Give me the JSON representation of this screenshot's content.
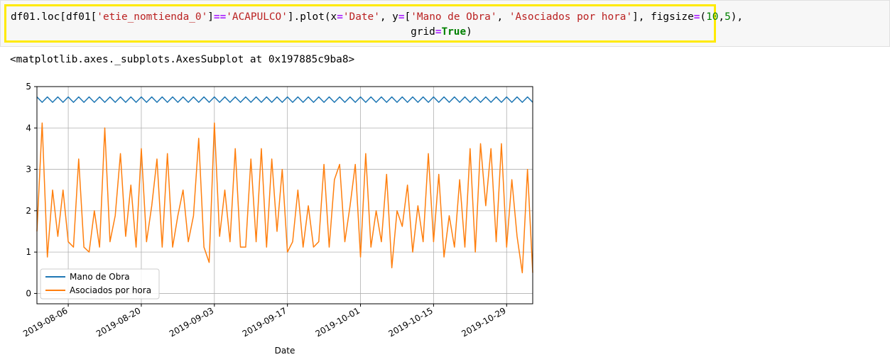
{
  "code_cell": {
    "line1_parts": [
      "df01.loc[df01[",
      "'etie_nomtienda_0'",
      "]",
      "==",
      "'ACAPULCO'",
      "].plot(x",
      "=",
      "'Date'",
      ", y",
      "=",
      "[",
      "'Mano de Obra'",
      ", ",
      "'Asociados por hora'",
      "], figsize",
      "=",
      "(",
      "10",
      ",",
      "5",
      "),"
    ],
    "line2_parts": [
      "grid",
      "=",
      "True",
      ")"
    ]
  },
  "output": {
    "repr": "<matplotlib.axes._subplots.AxesSubplot at 0x197885c9ba8>"
  },
  "colors": {
    "series_mano": "#1f77b4",
    "series_asociados": "#ff7f0e",
    "grid": "#b0b0b0",
    "highlight": "#ffea00"
  },
  "chart_data": {
    "type": "line",
    "title": "",
    "xlabel": "Date",
    "ylabel": "",
    "x_start": "2019-07-31",
    "x_end": "2019-11-03",
    "ylim": [
      -0.25,
      5.0
    ],
    "grid": true,
    "legend_position": "lower-left",
    "y_ticks": [
      "0",
      "1",
      "2",
      "3",
      "4",
      "5"
    ],
    "x_ticks": [
      "2019-08-06",
      "2019-08-20",
      "2019-09-03",
      "2019-09-17",
      "2019-10-01",
      "2019-10-15",
      "2019-10-29"
    ],
    "series": [
      {
        "name": "Mano de Obra",
        "values": [
          4.75,
          4.62,
          4.75,
          4.62,
          4.75,
          4.62,
          4.75,
          4.62,
          4.75,
          4.62,
          4.75,
          4.62,
          4.75,
          4.62,
          4.75,
          4.62,
          4.75,
          4.62,
          4.75,
          4.62,
          4.75,
          4.62,
          4.75,
          4.62,
          4.75,
          4.62,
          4.75,
          4.62,
          4.75,
          4.62,
          4.75,
          4.62,
          4.75,
          4.62,
          4.75,
          4.62,
          4.75,
          4.62,
          4.75,
          4.62,
          4.75,
          4.62,
          4.75,
          4.62,
          4.75,
          4.62,
          4.75,
          4.62,
          4.75,
          4.62,
          4.75,
          4.62,
          4.75,
          4.62,
          4.75,
          4.62,
          4.75,
          4.62,
          4.75,
          4.62,
          4.75,
          4.62,
          4.75,
          4.62,
          4.75,
          4.62,
          4.75,
          4.62,
          4.75,
          4.62,
          4.75,
          4.62,
          4.75,
          4.62,
          4.75,
          4.62,
          4.75,
          4.62,
          4.75,
          4.62,
          4.75,
          4.62,
          4.75,
          4.62,
          4.75,
          4.62,
          4.75,
          4.62,
          4.75,
          4.62,
          4.75,
          4.62,
          4.75,
          4.62,
          4.75,
          4.62
        ]
      },
      {
        "name": "Asociados por hora",
        "values": [
          1.5,
          4.12,
          0.88,
          2.5,
          1.38,
          2.5,
          1.25,
          1.12,
          3.25,
          1.12,
          1.0,
          2.0,
          1.12,
          4.0,
          1.25,
          1.88,
          3.38,
          1.38,
          2.62,
          1.12,
          3.5,
          1.25,
          2.12,
          3.25,
          1.12,
          3.38,
          1.12,
          1.88,
          2.5,
          1.25,
          1.88,
          3.75,
          1.12,
          0.75,
          4.12,
          1.38,
          2.5,
          1.25,
          3.5,
          1.12,
          1.12,
          3.25,
          1.25,
          3.5,
          1.12,
          3.25,
          1.5,
          3.0,
          1.0,
          1.25,
          2.5,
          1.12,
          2.12,
          1.12,
          1.25,
          3.12,
          1.12,
          2.75,
          3.12,
          1.25,
          2.12,
          3.12,
          0.88,
          3.38,
          1.12,
          2.0,
          1.25,
          2.88,
          0.62,
          2.0,
          1.62,
          2.62,
          1.0,
          2.12,
          1.25,
          3.38,
          1.25,
          2.88,
          0.88,
          1.88,
          1.12,
          2.75,
          1.12,
          3.5,
          1.0,
          3.62,
          2.12,
          3.5,
          1.25,
          3.62,
          1.12,
          2.75,
          1.38,
          0.5,
          3.0,
          0.5
        ]
      }
    ]
  }
}
